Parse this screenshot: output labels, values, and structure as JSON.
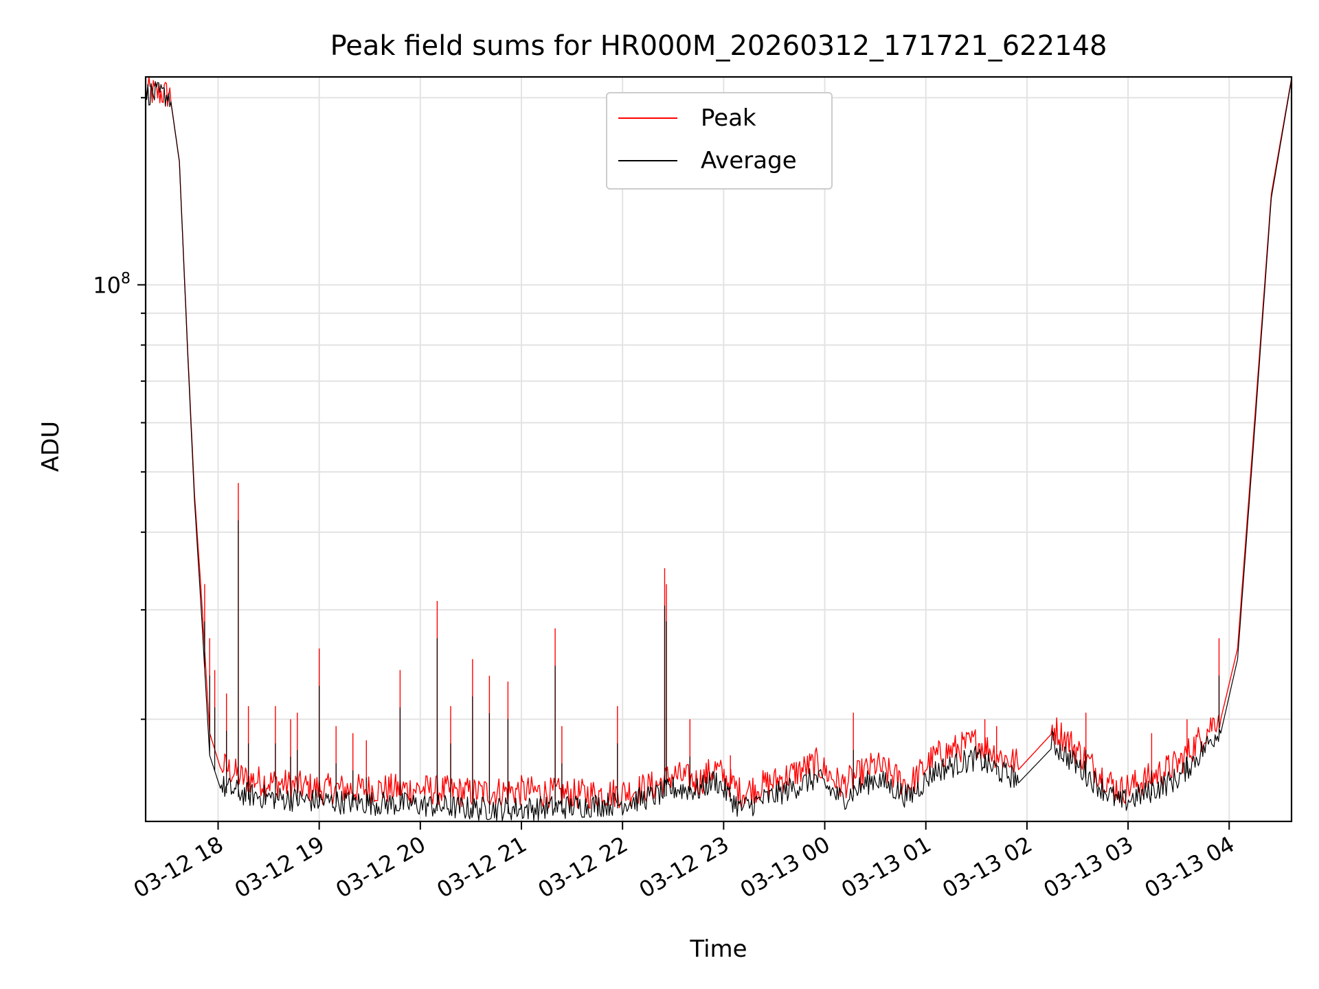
{
  "chart_data": {
    "type": "line",
    "title": "Peak field sums for HR000M_20260312_171721_622148",
    "xlabel": "Time",
    "ylabel": "ADU",
    "yscale": "log",
    "ylim": [
      13700000,
      216000000
    ],
    "y_tick_label": {
      "base": "10",
      "exp": "8"
    },
    "y_tick_value": 100000000,
    "xlim": [
      "2026-03-12 17:17",
      "2026-03-13 04:37"
    ],
    "x_ticks": [
      {
        "label": "03-12 18",
        "t": "2026-03-12 18:00"
      },
      {
        "label": "03-12 19",
        "t": "2026-03-12 19:00"
      },
      {
        "label": "03-12 20",
        "t": "2026-03-12 20:00"
      },
      {
        "label": "03-12 21",
        "t": "2026-03-12 21:00"
      },
      {
        "label": "03-12 22",
        "t": "2026-03-12 22:00"
      },
      {
        "label": "03-12 23",
        "t": "2026-03-12 23:00"
      },
      {
        "label": "03-13 00",
        "t": "2026-03-13 00:00"
      },
      {
        "label": "03-13 01",
        "t": "2026-03-13 01:00"
      },
      {
        "label": "03-13 02",
        "t": "2026-03-13 02:00"
      },
      {
        "label": "03-13 03",
        "t": "2026-03-13 03:00"
      },
      {
        "label": "03-13 04",
        "t": "2026-03-13 04:00"
      }
    ],
    "grid": true,
    "legend_position": "top-center",
    "series": [
      {
        "name": "Peak",
        "color": "#ff0000",
        "x": [
          "2026-03-12 17:17",
          "2026-03-12 17:30",
          "2026-03-12 17:32",
          "2026-03-12 17:37",
          "2026-03-12 17:42",
          "2026-03-12 17:46",
          "2026-03-12 17:50",
          "2026-03-12 17:55",
          "2026-03-12 18:02",
          "2026-03-12 18:15",
          "2026-03-12 18:30",
          "2026-03-12 19:00",
          "2026-03-12 19:30",
          "2026-03-12 20:00",
          "2026-03-12 20:30",
          "2026-03-12 21:00",
          "2026-03-12 21:30",
          "2026-03-12 22:00",
          "2026-03-12 22:20",
          "2026-03-12 22:30",
          "2026-03-12 22:45",
          "2026-03-12 22:55",
          "2026-03-12 23:10",
          "2026-03-12 23:30",
          "2026-03-12 23:55",
          "2026-03-13 00:10",
          "2026-03-13 00:30",
          "2026-03-13 00:50",
          "2026-03-13 01:05",
          "2026-03-13 01:30",
          "2026-03-13 01:45",
          "2026-03-13 01:55",
          "2026-03-13 02:15",
          "2026-03-13 02:25",
          "2026-03-13 02:40",
          "2026-03-13 02:55",
          "2026-03-13 03:10",
          "2026-03-13 03:30",
          "2026-03-13 03:45",
          "2026-03-13 03:55",
          "2026-03-13 04:05",
          "2026-03-13 04:15",
          "2026-03-13 04:25",
          "2026-03-13 04:37"
        ],
        "values": [
          200000000,
          198000000,
          197000000,
          158000000,
          78000000,
          46000000,
          32000000,
          19000000,
          16500000,
          15700000,
          15500000,
          15100000,
          15100000,
          15100000,
          14900000,
          15000000,
          14800000,
          14900000,
          15300000,
          15900000,
          15500000,
          16300000,
          14900000,
          15500000,
          16600000,
          15300000,
          16500000,
          15300000,
          17000000,
          18000000,
          17000000,
          16600000,
          19000000,
          18000000,
          16300000,
          15000000,
          15600000,
          16600000,
          18500000,
          20000000,
          26000000,
          60000000,
          140000000,
          215000000
        ]
      },
      {
        "name": "Average",
        "color": "#000000",
        "x": [
          "2026-03-12 17:17",
          "2026-03-12 17:30",
          "2026-03-12 17:32",
          "2026-03-12 17:37",
          "2026-03-12 17:42",
          "2026-03-12 17:46",
          "2026-03-12 17:50",
          "2026-03-12 17:55",
          "2026-03-12 18:02",
          "2026-03-12 18:15",
          "2026-03-12 18:30",
          "2026-03-12 19:00",
          "2026-03-12 19:30",
          "2026-03-12 20:00",
          "2026-03-12 20:30",
          "2026-03-12 21:00",
          "2026-03-12 21:30",
          "2026-03-12 22:00",
          "2026-03-12 22:20",
          "2026-03-12 22:30",
          "2026-03-12 22:45",
          "2026-03-12 22:55",
          "2026-03-12 23:10",
          "2026-03-12 23:30",
          "2026-03-12 23:55",
          "2026-03-13 00:10",
          "2026-03-13 00:30",
          "2026-03-13 00:50",
          "2026-03-13 01:05",
          "2026-03-13 01:30",
          "2026-03-13 01:45",
          "2026-03-13 01:55",
          "2026-03-13 02:15",
          "2026-03-13 02:25",
          "2026-03-13 02:40",
          "2026-03-13 02:55",
          "2026-03-13 03:10",
          "2026-03-13 03:30",
          "2026-03-13 03:45",
          "2026-03-13 03:55",
          "2026-03-13 04:05",
          "2026-03-13 04:15",
          "2026-03-13 04:25",
          "2026-03-13 04:37"
        ],
        "values": [
          200000000,
          198000000,
          197000000,
          158000000,
          77000000,
          45000000,
          30000000,
          17500000,
          15300000,
          14900000,
          14700000,
          14500000,
          14400000,
          14300000,
          14100000,
          14100000,
          14200000,
          14400000,
          14800000,
          15200000,
          15100000,
          15700000,
          14100000,
          14800000,
          15800000,
          14600000,
          15800000,
          14700000,
          16200000,
          17000000,
          16100000,
          15800000,
          18000000,
          17000000,
          15600000,
          14400000,
          14900000,
          15800000,
          17600000,
          19000000,
          25000000,
          58000000,
          138000000,
          214000000
        ]
      }
    ],
    "spikes": {
      "Peak": [
        {
          "t": "2026-03-12 17:52",
          "v": 33000000
        },
        {
          "t": "2026-03-12 17:55",
          "v": 27000000
        },
        {
          "t": "2026-03-12 17:58",
          "v": 24000000
        },
        {
          "t": "2026-03-12 18:05",
          "v": 22000000
        },
        {
          "t": "2026-03-12 18:12",
          "v": 48000000
        },
        {
          "t": "2026-03-12 18:18",
          "v": 21000000
        },
        {
          "t": "2026-03-12 18:34",
          "v": 21000000
        },
        {
          "t": "2026-03-12 18:43",
          "v": 20000000
        },
        {
          "t": "2026-03-12 18:47",
          "v": 20500000
        },
        {
          "t": "2026-03-12 19:00",
          "v": 26000000
        },
        {
          "t": "2026-03-12 19:10",
          "v": 19500000
        },
        {
          "t": "2026-03-12 19:20",
          "v": 19000000
        },
        {
          "t": "2026-03-12 19:28",
          "v": 18500000
        },
        {
          "t": "2026-03-12 19:48",
          "v": 24000000
        },
        {
          "t": "2026-03-12 20:10",
          "v": 31000000
        },
        {
          "t": "2026-03-12 20:18",
          "v": 21000000
        },
        {
          "t": "2026-03-12 20:31",
          "v": 25000000
        },
        {
          "t": "2026-03-12 20:41",
          "v": 23500000
        },
        {
          "t": "2026-03-12 20:52",
          "v": 23000000
        },
        {
          "t": "2026-03-12 21:20",
          "v": 28000000
        },
        {
          "t": "2026-03-12 21:24",
          "v": 19500000
        },
        {
          "t": "2026-03-12 21:57",
          "v": 21000000
        },
        {
          "t": "2026-03-12 22:25",
          "v": 35000000
        },
        {
          "t": "2026-03-12 22:26",
          "v": 33000000
        },
        {
          "t": "2026-03-12 22:40",
          "v": 20000000
        },
        {
          "t": "2026-03-12 23:04",
          "v": 17500000
        },
        {
          "t": "2026-03-13 00:17",
          "v": 20500000
        },
        {
          "t": "2026-03-13 01:35",
          "v": 20000000
        },
        {
          "t": "2026-03-13 01:42",
          "v": 19500000
        },
        {
          "t": "2026-03-13 02:35",
          "v": 20500000
        },
        {
          "t": "2026-03-13 03:14",
          "v": 19000000
        },
        {
          "t": "2026-03-13 03:35",
          "v": 20000000
        },
        {
          "t": "2026-03-13 03:54",
          "v": 27000000
        }
      ]
    }
  }
}
